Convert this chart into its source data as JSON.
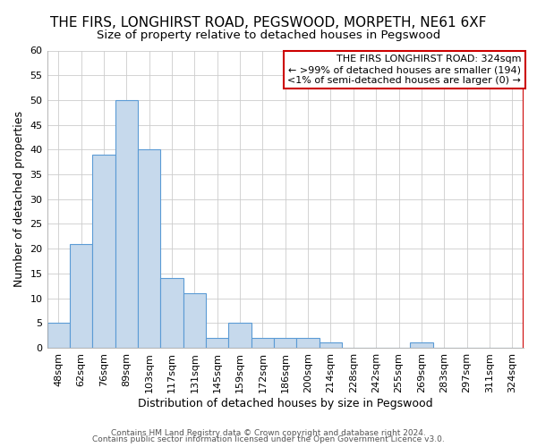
{
  "title": "THE FIRS, LONGHIRST ROAD, PEGSWOOD, MORPETH, NE61 6XF",
  "subtitle": "Size of property relative to detached houses in Pegswood",
  "xlabel": "Distribution of detached houses by size in Pegswood",
  "ylabel": "Number of detached properties",
  "categories": [
    "48sqm",
    "62sqm",
    "76sqm",
    "89sqm",
    "103sqm",
    "117sqm",
    "131sqm",
    "145sqm",
    "159sqm",
    "172sqm",
    "186sqm",
    "200sqm",
    "214sqm",
    "228sqm",
    "242sqm",
    "255sqm",
    "269sqm",
    "283sqm",
    "297sqm",
    "311sqm",
    "324sqm"
  ],
  "values": [
    5,
    21,
    39,
    50,
    40,
    14,
    11,
    2,
    5,
    2,
    2,
    2,
    1,
    0,
    0,
    0,
    1,
    0,
    0,
    0,
    0
  ],
  "bar_color": "#c6d9ec",
  "bar_edge_color": "#5b9bd5",
  "red_line_color": "#cc0000",
  "ylim": [
    0,
    60
  ],
  "yticks": [
    0,
    5,
    10,
    15,
    20,
    25,
    30,
    35,
    40,
    45,
    50,
    55,
    60
  ],
  "annotation_title": "THE FIRS LONGHIRST ROAD: 324sqm",
  "annotation_line1": "← >99% of detached houses are smaller (194)",
  "annotation_line2": "<1% of semi-detached houses are larger (0) →",
  "annotation_box_facecolor": "#ffffff",
  "annotation_box_edgecolor": "#cc0000",
  "footnote1": "Contains HM Land Registry data © Crown copyright and database right 2024.",
  "footnote2": "Contains public sector information licensed under the Open Government Licence v3.0.",
  "background_color": "#ffffff",
  "grid_color": "#cccccc",
  "title_fontsize": 11,
  "subtitle_fontsize": 9.5,
  "tick_fontsize": 8,
  "ylabel_fontsize": 9,
  "xlabel_fontsize": 9,
  "annotation_fontsize": 8,
  "footnote_fontsize": 6.5
}
